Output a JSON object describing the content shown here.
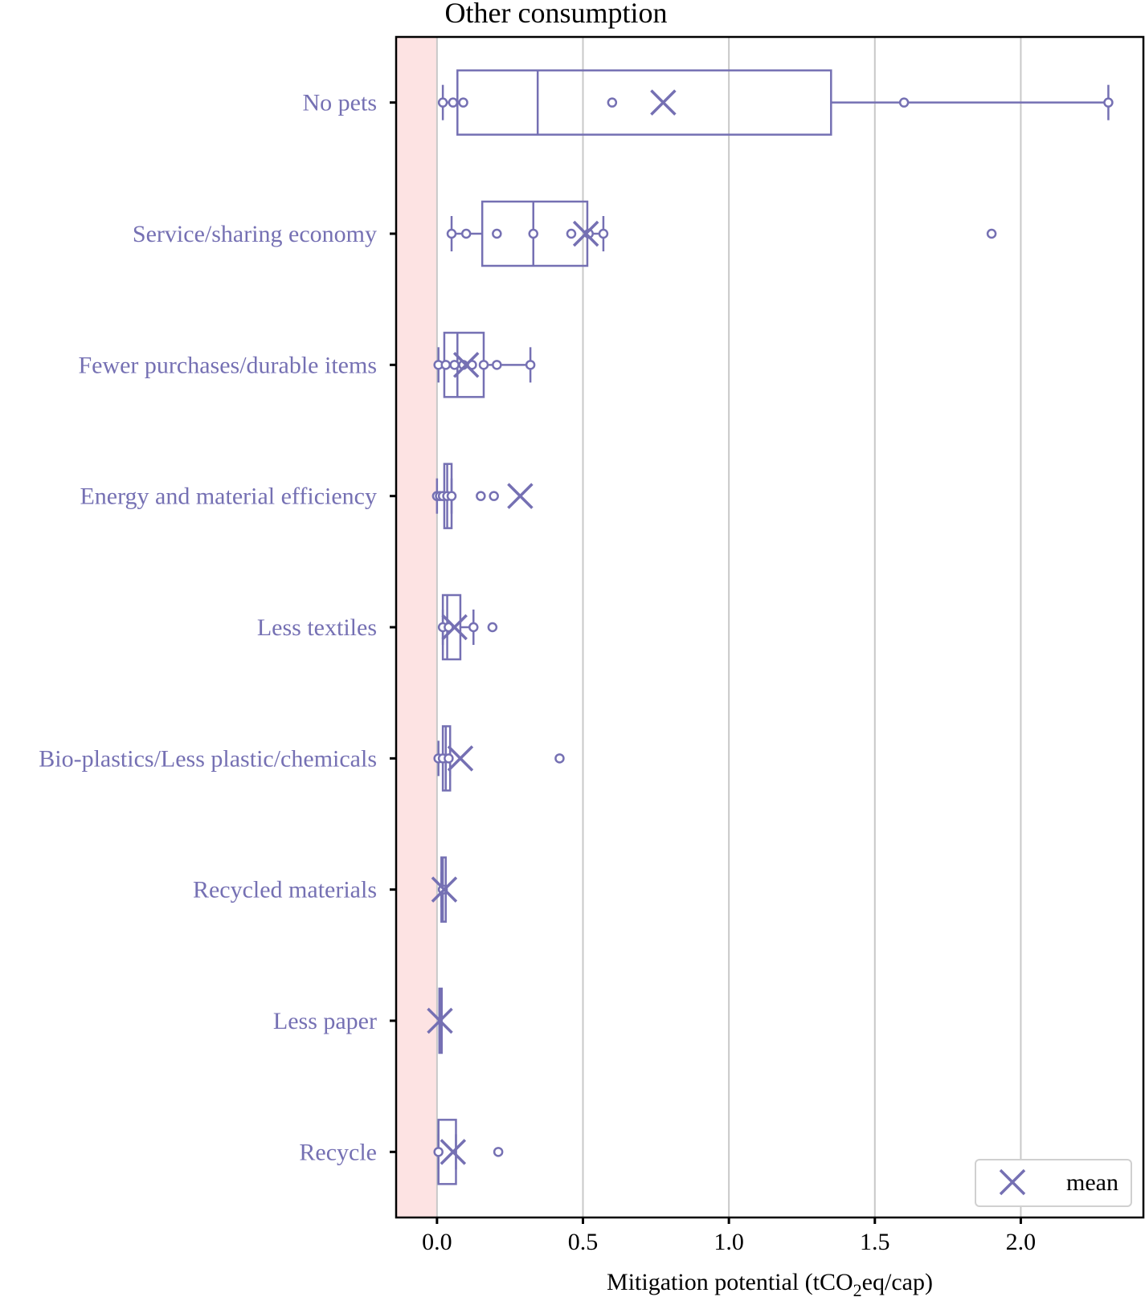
{
  "chart_data": {
    "type": "boxplot",
    "orientation": "horizontal",
    "title": "Other consumption",
    "xlabel": {
      "prefix": "Mitigation potential (tCO",
      "subscript": "2",
      "suffix": "eq/cap)"
    },
    "xlim": [
      -0.14,
      2.42
    ],
    "xticks": [
      0.0,
      0.5,
      1.0,
      1.5,
      2.0
    ],
    "xtick_labels": [
      "0.0",
      "0.5",
      "1.0",
      "1.5",
      "2.0"
    ],
    "grid": "vertical",
    "shaded_region": {
      "from": -0.14,
      "to": 0.0,
      "color": "#fde3e3"
    },
    "legend": {
      "position": "lower-right",
      "entries": [
        {
          "marker": "x",
          "label": "mean"
        }
      ]
    },
    "colors": {
      "box": "#7570b3",
      "label": "#7570b3",
      "grid": "#c8c8c8",
      "axis": "#000000",
      "text": "#000000"
    },
    "categories": [
      {
        "label": "No pets",
        "whislo": 0.02,
        "q1": 0.07,
        "med": 0.345,
        "q3": 1.35,
        "whishi": 2.3,
        "mean": 0.775,
        "points": [
          0.02,
          0.055,
          0.09,
          0.6,
          1.6,
          2.3
        ],
        "fliers": []
      },
      {
        "label": "Service/sharing economy",
        "whislo": 0.05,
        "q1": 0.155,
        "med": 0.33,
        "q3": 0.515,
        "whishi": 0.57,
        "mean": 0.51,
        "points": [
          0.05,
          0.1,
          0.205,
          0.33,
          0.46,
          0.52,
          0.57
        ],
        "fliers": [
          1.9
        ]
      },
      {
        "label": "Fewer purchases/durable items",
        "whislo": 0.005,
        "q1": 0.025,
        "med": 0.07,
        "q3": 0.16,
        "whishi": 0.32,
        "mean": 0.1,
        "points": [
          0.005,
          0.03,
          0.06,
          0.09,
          0.12,
          0.16,
          0.205,
          0.32
        ],
        "fliers": []
      },
      {
        "label": "Energy and material efficiency",
        "whislo": 0.0,
        "q1": 0.025,
        "med": 0.035,
        "q3": 0.05,
        "whishi": 0.05,
        "mean": 0.285,
        "points": [
          0.0,
          0.01,
          0.02,
          0.035,
          0.05
        ],
        "fliers": [
          0.15,
          0.195
        ]
      },
      {
        "label": "Less textiles",
        "whislo": 0.02,
        "q1": 0.02,
        "med": 0.035,
        "q3": 0.08,
        "whishi": 0.125,
        "mean": 0.06,
        "points": [
          0.02,
          0.04,
          0.125
        ],
        "fliers": [
          0.19
        ]
      },
      {
        "label": "Bio-plastics/Less plastic/chemicals",
        "whislo": 0.005,
        "q1": 0.02,
        "med": 0.03,
        "q3": 0.045,
        "whishi": 0.045,
        "mean": 0.08,
        "points": [
          0.005,
          0.02,
          0.04
        ],
        "fliers": [
          0.42
        ]
      },
      {
        "label": "Recycled materials",
        "whislo": 0.015,
        "q1": 0.015,
        "med": 0.02,
        "q3": 0.03,
        "whishi": 0.03,
        "mean": 0.025,
        "points": [
          0.02
        ],
        "fliers": []
      },
      {
        "label": "Less paper",
        "whislo": 0.008,
        "q1": 0.008,
        "med": 0.01,
        "q3": 0.012,
        "whishi": 0.012,
        "mean": 0.01,
        "points": [],
        "fliers": []
      },
      {
        "label": "Recycle",
        "whislo": 0.005,
        "q1": 0.005,
        "med": 0.005,
        "q3": 0.065,
        "whishi": 0.065,
        "mean": 0.055,
        "points": [
          0.005
        ],
        "fliers": [
          0.21
        ]
      }
    ]
  }
}
